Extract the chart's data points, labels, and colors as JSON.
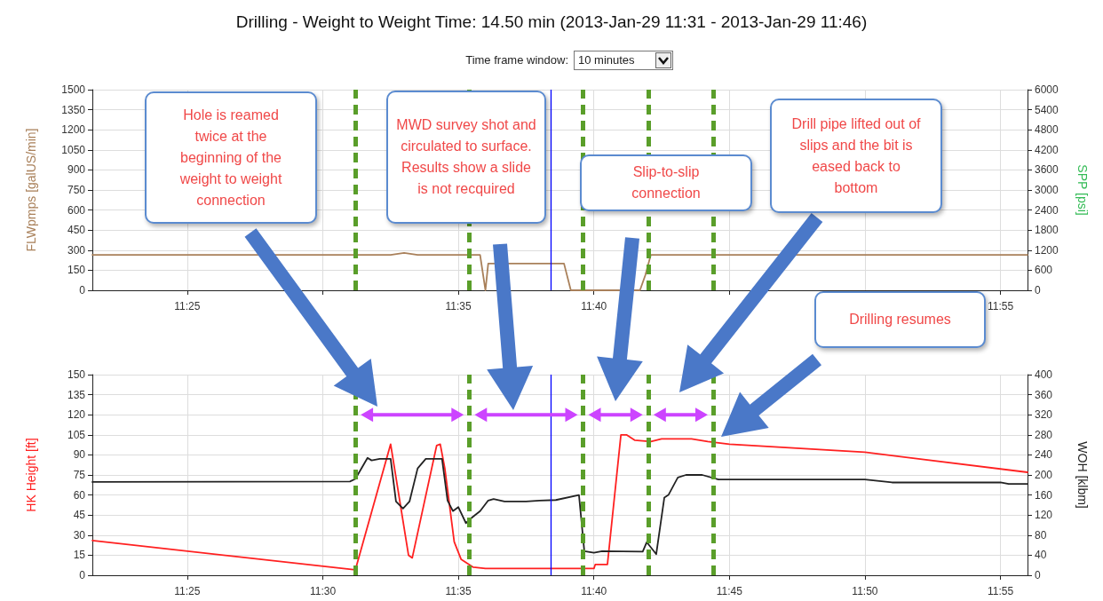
{
  "chart_data": [
    {
      "type": "line",
      "title": "Drilling - Weight to Weight Time: 14.50 min (2013-Jan-29 11:31 - 2013-Jan-29 11:46)",
      "ylabel": "FLWpmps [galUS/min]",
      "y2label": "SPP [psi]",
      "annotations": [
        "Time frame window:",
        "10 minutes",
        "Hole is reamed twice at the beginning of the weight to weight connection",
        "MWD survey shot and circulated to surface.  Results show a slide is not recquired",
        "Slip-to-slip connection",
        "Drill pipe lifted out of slips and the bit is eased back to bottom"
      ],
      "xlim": [
        11.3583,
        11.9333
      ],
      "xticks": [
        {
          "value": 11.41667,
          "label": "11:25"
        },
        {
          "value": 11.5,
          "label": null
        },
        {
          "value": 11.58333,
          "label": "11:35"
        },
        {
          "value": 11.66667,
          "label": "11:40"
        },
        {
          "value": 11.75,
          "label": null
        },
        {
          "value": 11.83333,
          "label": null
        },
        {
          "value": 11.91667,
          "label": "11:55"
        }
      ],
      "ylim": [
        0,
        1500
      ],
      "yticks": [
        0,
        150,
        300,
        450,
        600,
        750,
        900,
        1050,
        1200,
        1350,
        1500
      ],
      "y2lim": [
        0,
        6000
      ],
      "y2ticks": [
        0,
        600,
        1200,
        1800,
        2400,
        3000,
        3600,
        4200,
        4800,
        5400,
        6000
      ],
      "series": [
        {
          "color": "#a9805a",
          "x": [
            11.3583,
            11.5417,
            11.55,
            11.5583,
            11.5967,
            11.6,
            11.6017,
            11.6483,
            11.6525,
            11.695,
            11.6983,
            11.7017,
            11.9333
          ],
          "values": [
            265,
            265,
            280,
            265,
            265,
            0,
            200,
            200,
            0,
            0,
            113,
            265,
            265
          ]
        }
      ],
      "ref_lines": [
        {
          "axis": "x",
          "value": 11.52,
          "color": "#5a9e2a",
          "line_style": "dashed"
        },
        {
          "axis": "x",
          "value": 11.59,
          "color": "#5a9e2a",
          "line_style": "dashed"
        },
        {
          "axis": "x",
          "value": 11.66,
          "color": "#5a9e2a",
          "line_style": "dashed"
        },
        {
          "axis": "x",
          "value": 11.7,
          "color": "#5a9e2a",
          "line_style": "dashed"
        },
        {
          "axis": "x",
          "value": 11.74,
          "color": "#5a9e2a",
          "line_style": "dashed"
        },
        {
          "axis": "x",
          "value": 11.64,
          "color": "#0000ff",
          "line_style": "solid"
        }
      ],
      "grid": true,
      "marker": "none",
      "line_style": "solid"
    },
    {
      "type": "line",
      "ylabel": "HK Height [ft]",
      "y2label": "WOH [klbm]",
      "annotations": [
        "Drilling resumes"
      ],
      "xlim": [
        11.3583,
        11.9333
      ],
      "xticks": [
        {
          "value": 11.41667,
          "label": "11:25"
        },
        {
          "value": 11.5,
          "label": "11:30"
        },
        {
          "value": 11.58333,
          "label": "11:35"
        },
        {
          "value": 11.66667,
          "label": "11:40"
        },
        {
          "value": 11.75,
          "label": "11:45"
        },
        {
          "value": 11.83333,
          "label": "11:50"
        },
        {
          "value": 11.91667,
          "label": "11:55"
        }
      ],
      "ylim": [
        0,
        150
      ],
      "yticks": [
        0,
        15,
        30,
        45,
        60,
        75,
        90,
        105,
        120,
        135,
        150
      ],
      "y2lim": [
        0,
        400
      ],
      "y2ticks": [
        0,
        40,
        80,
        120,
        160,
        200,
        240,
        280,
        320,
        360,
        400
      ],
      "series": [
        {
          "color": "#ff2020",
          "x": [
            11.3583,
            11.52,
            11.5417,
            11.5527,
            11.555,
            11.57,
            11.5722,
            11.575,
            11.5808,
            11.585,
            11.5925,
            11.6,
            11.6667,
            11.6675,
            11.675,
            11.6833,
            11.6867,
            11.6917,
            11.7017,
            11.7083,
            11.7267,
            11.7367,
            11.75,
            11.8333,
            11.9333
          ],
          "values": [
            26,
            4,
            98,
            15,
            13,
            97,
            98,
            80,
            25,
            12,
            6,
            5,
            5,
            8,
            8,
            105,
            105,
            101,
            100,
            102,
            102,
            100,
            98,
            92,
            77
          ]
        },
        {
          "color": "#222222",
          "axis": "y2",
          "x": [
            11.3583,
            11.5167,
            11.52,
            11.5275,
            11.53,
            11.535,
            11.5417,
            11.545,
            11.5493,
            11.5533,
            11.5583,
            11.5633,
            11.5733,
            11.5767,
            11.58,
            11.5833,
            11.588,
            11.5917,
            11.5967,
            11.6017,
            11.605,
            11.6117,
            11.625,
            11.6333,
            11.6433,
            11.6575,
            11.6608,
            11.6667,
            11.6717,
            11.6967,
            11.6992,
            11.705,
            11.71,
            11.7125,
            11.7183,
            11.7233,
            11.7333,
            11.7433,
            11.8333,
            11.85,
            11.9167,
            11.9217,
            11.9333
          ],
          "values": [
            186,
            187,
            192,
            234,
            229,
            232,
            232,
            147,
            133,
            147,
            213,
            232,
            232,
            149,
            128,
            136,
            104,
            115,
            128,
            149,
            152,
            147,
            147,
            149,
            150,
            160,
            48,
            45,
            48,
            47,
            66,
            42,
            155,
            160,
            195,
            200,
            200,
            191,
            191,
            185,
            185,
            182,
            182
          ]
        }
      ],
      "ref_lines": [
        {
          "axis": "x",
          "value": 11.52,
          "color": "#5a9e2a",
          "line_style": "dashed"
        },
        {
          "axis": "x",
          "value": 11.59,
          "color": "#5a9e2a",
          "line_style": "dashed"
        },
        {
          "axis": "x",
          "value": 11.66,
          "color": "#5a9e2a",
          "line_style": "dashed"
        },
        {
          "axis": "x",
          "value": 11.7,
          "color": "#5a9e2a",
          "line_style": "dashed"
        },
        {
          "axis": "x",
          "value": 11.74,
          "color": "#5a9e2a",
          "line_style": "dashed"
        },
        {
          "axis": "x",
          "value": 11.64,
          "color": "#0000ff",
          "line_style": "solid"
        }
      ],
      "grid": true,
      "marker": "none",
      "line_style": "solid"
    }
  ]
}
